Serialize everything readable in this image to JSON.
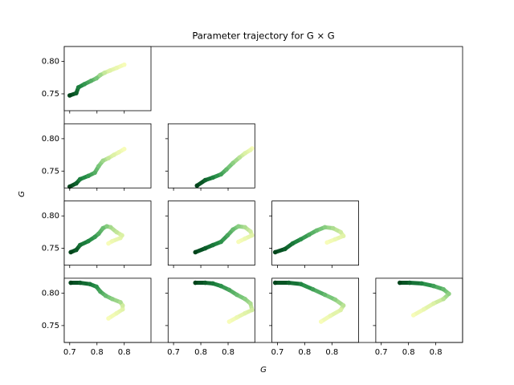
{
  "chart_data": {
    "type": "scatter",
    "title": "Parameter trajectory for G × G",
    "xlabel": "G",
    "ylabel": "G",
    "xlim": [
      0.69,
      0.849
    ],
    "ylim": [
      0.724,
      0.823
    ],
    "xticks": [
      {
        "value": 0.7,
        "label": "0.7"
      },
      {
        "value": 0.75,
        "label": "0.8"
      },
      {
        "value": 0.8,
        "label": "0.8"
      }
    ],
    "yticks": [
      0.75,
      {
        "value": 0.8,
        "label": "0.80"
      }
    ],
    "colors": [
      "#00441b",
      "#238b45",
      "#78c679",
      "#d9f0a3",
      "#f7fcb9"
    ],
    "panels": [
      {
        "x": [
          0.7,
          0.712,
          0.716,
          0.727,
          0.739,
          0.749,
          0.756,
          0.764,
          0.774,
          0.786,
          0.8
        ],
        "y": [
          0.7475,
          0.751,
          0.76,
          0.765,
          0.77,
          0.774,
          0.779,
          0.7825,
          0.786,
          0.79,
          0.795
        ]
      },
      {
        "x": [
          0.7,
          0.712,
          0.719,
          0.734,
          0.746,
          0.753,
          0.761,
          0.771,
          0.781,
          0.79,
          0.8
        ],
        "y": [
          0.726,
          0.731,
          0.7375,
          0.7425,
          0.7475,
          0.7575,
          0.766,
          0.77,
          0.775,
          0.779,
          0.784
        ]
      },
      {
        "x": [
          0.743,
          0.758,
          0.772,
          0.787,
          0.797,
          0.809,
          0.821,
          0.831,
          0.841,
          0.844
        ],
        "y": [
          0.7275,
          0.736,
          0.74,
          0.745,
          0.7525,
          0.7625,
          0.771,
          0.7775,
          0.7825,
          0.785
        ]
      },
      {
        "x": [
          0.702,
          0.712,
          0.719,
          0.734,
          0.746,
          0.753,
          0.761,
          0.768,
          0.775,
          0.786,
          0.796,
          0.793,
          0.778,
          0.771
        ],
        "y": [
          0.744,
          0.7475,
          0.755,
          0.761,
          0.7675,
          0.7725,
          0.781,
          0.784,
          0.7825,
          0.775,
          0.77,
          0.766,
          0.761,
          0.7575
        ]
      },
      {
        "x": [
          0.74,
          0.758,
          0.772,
          0.787,
          0.799,
          0.809,
          0.819,
          0.831,
          0.841,
          0.844,
          0.831,
          0.819
        ],
        "y": [
          0.744,
          0.75,
          0.755,
          0.76,
          0.77,
          0.779,
          0.784,
          0.7825,
          0.776,
          0.77,
          0.765,
          0.76
        ]
      },
      {
        "x": [
          0.696,
          0.714,
          0.728,
          0.743,
          0.758,
          0.772,
          0.787,
          0.802,
          0.816,
          0.821,
          0.806,
          0.791
        ],
        "y": [
          0.744,
          0.749,
          0.7575,
          0.764,
          0.771,
          0.7775,
          0.7825,
          0.781,
          0.775,
          0.769,
          0.764,
          0.759
        ]
      },
      {
        "x": [
          0.702,
          0.719,
          0.737,
          0.749,
          0.756,
          0.766,
          0.778,
          0.793,
          0.797,
          0.797,
          0.786,
          0.771
        ],
        "y": [
          0.816,
          0.816,
          0.814,
          0.81,
          0.8025,
          0.796,
          0.791,
          0.786,
          0.781,
          0.775,
          0.769,
          0.761
        ]
      },
      {
        "x": [
          0.74,
          0.758,
          0.772,
          0.787,
          0.802,
          0.816,
          0.831,
          0.841,
          0.844,
          0.831,
          0.816,
          0.802
        ],
        "y": [
          0.816,
          0.816,
          0.815,
          0.811,
          0.805,
          0.7975,
          0.791,
          0.784,
          0.774,
          0.769,
          0.7625,
          0.756
        ]
      },
      {
        "x": [
          0.696,
          0.721,
          0.743,
          0.765,
          0.787,
          0.806,
          0.821,
          0.816,
          0.797,
          0.78
        ],
        "y": [
          0.816,
          0.816,
          0.814,
          0.806,
          0.7975,
          0.79,
          0.781,
          0.774,
          0.765,
          0.756
        ]
      },
      {
        "x": [
          0.734,
          0.752,
          0.774,
          0.796,
          0.814,
          0.824,
          0.814,
          0.796,
          0.778,
          0.759
        ],
        "y": [
          0.816,
          0.816,
          0.815,
          0.811,
          0.806,
          0.799,
          0.791,
          0.784,
          0.775,
          0.766
        ]
      }
    ]
  }
}
